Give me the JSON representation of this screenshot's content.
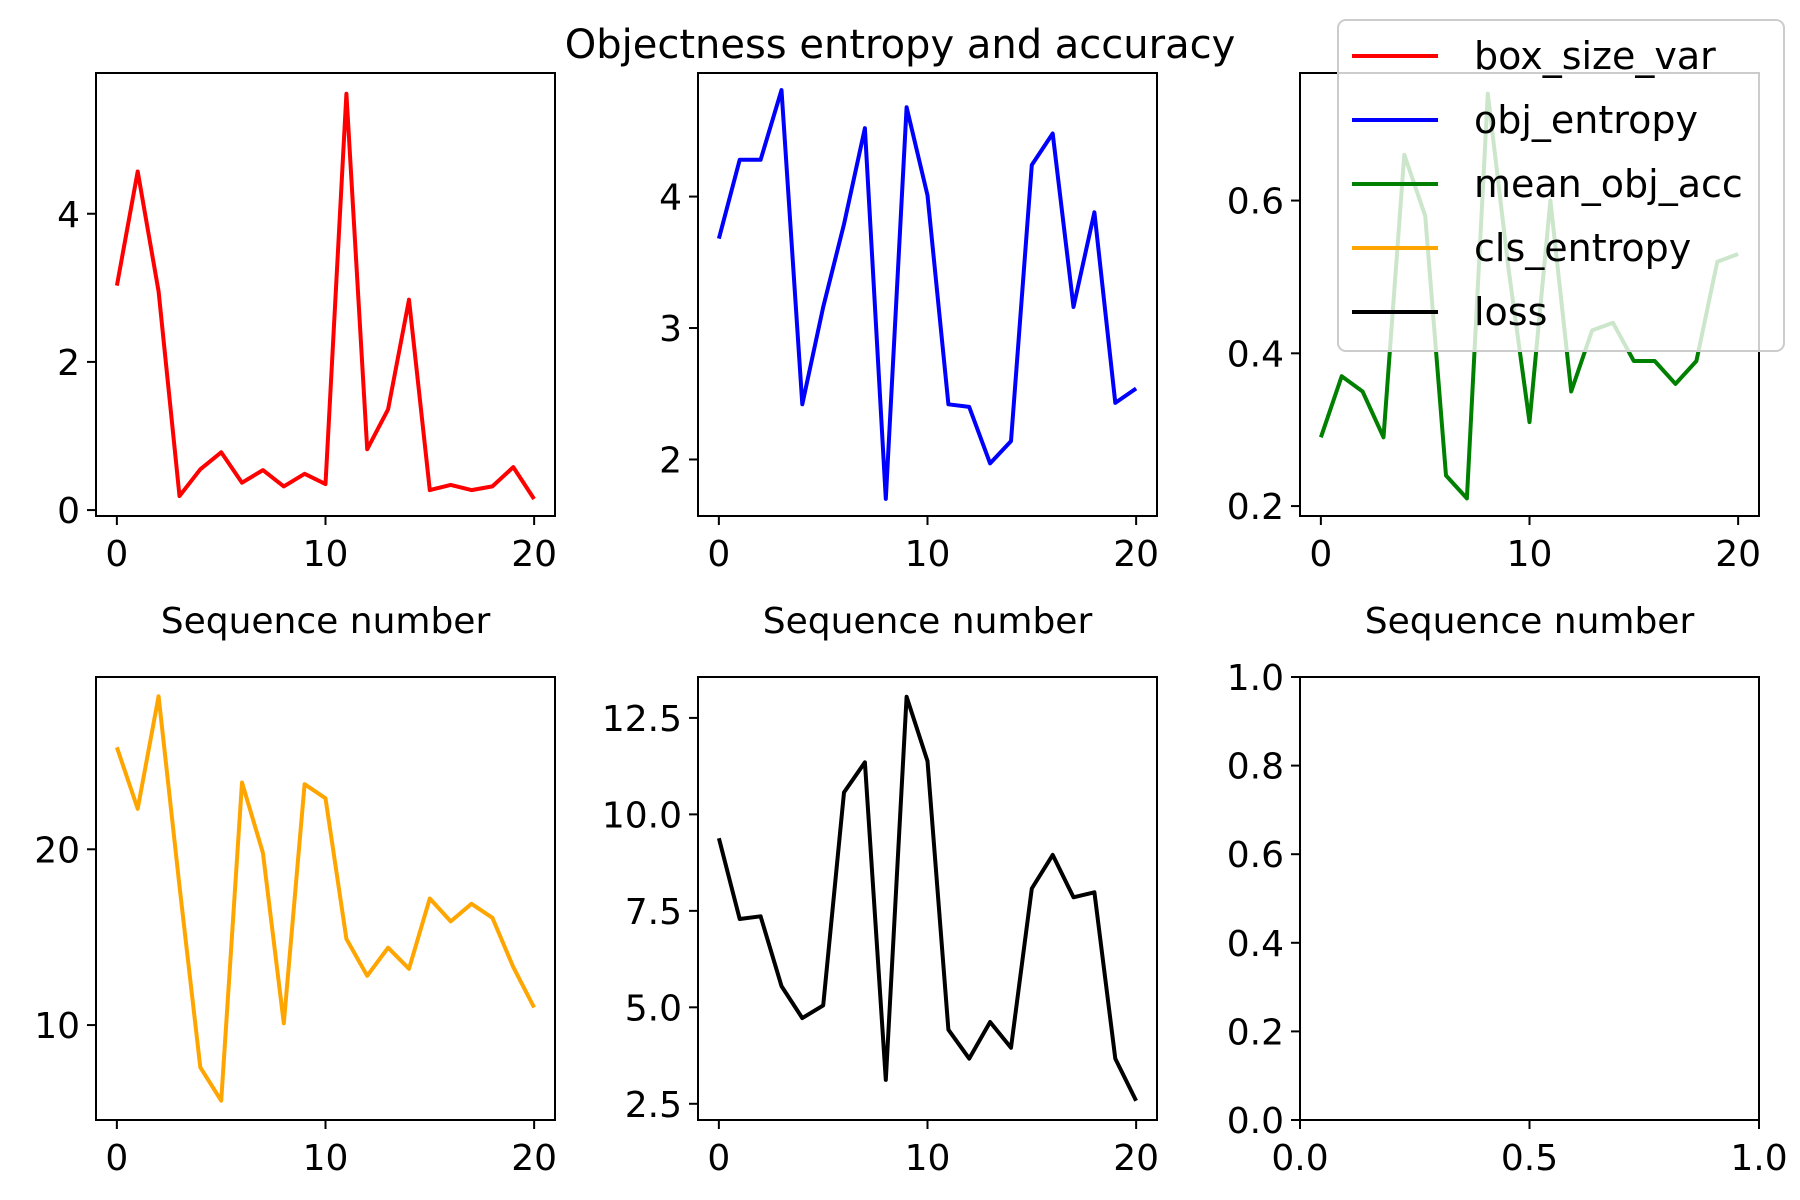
{
  "title": "Objectness entropy and accuracy",
  "legend": {
    "placement": "top-right",
    "entries": [
      {
        "label": "box_size_var",
        "color": "#ff0000"
      },
      {
        "label": "obj_entropy",
        "color": "#0000ff"
      },
      {
        "label": "mean_obj_acc",
        "color": "#008000"
      },
      {
        "label": "cls_entropy",
        "color": "#ffa500"
      },
      {
        "label": "loss",
        "color": "#000000"
      }
    ]
  },
  "chart_data": [
    {
      "type": "line",
      "series": [
        {
          "name": "box_size_var",
          "color": "#ff0000",
          "x": [
            0,
            1,
            2,
            3,
            4,
            5,
            6,
            7,
            8,
            9,
            10,
            11,
            12,
            13,
            14,
            15,
            16,
            17,
            18,
            19,
            20
          ],
          "values": [
            3.03,
            4.57,
            2.95,
            0.19,
            0.55,
            0.78,
            0.37,
            0.54,
            0.32,
            0.49,
            0.35,
            5.62,
            0.82,
            1.36,
            2.84,
            0.27,
            0.34,
            0.27,
            0.32,
            0.58,
            0.15
          ]
        }
      ],
      "xlabel": "Sequence number",
      "ylabel": "",
      "xlim": [
        -1,
        21
      ],
      "ylim": [
        -0.08,
        5.9
      ],
      "xticks": [
        0,
        10,
        20
      ],
      "yticks": [
        0,
        2,
        4
      ],
      "xticklabels": [
        "0",
        "10",
        "20"
      ],
      "yticklabels": [
        "0",
        "2",
        "4"
      ],
      "grid": false
    },
    {
      "type": "line",
      "series": [
        {
          "name": "obj_entropy",
          "color": "#0000ff",
          "x": [
            0,
            1,
            2,
            3,
            4,
            5,
            6,
            7,
            8,
            9,
            10,
            11,
            12,
            13,
            14,
            15,
            16,
            17,
            18,
            19,
            20
          ],
          "values": [
            3.68,
            4.28,
            4.28,
            4.81,
            2.42,
            3.16,
            3.79,
            4.52,
            1.7,
            4.68,
            4.01,
            2.42,
            2.4,
            1.97,
            2.14,
            4.24,
            4.48,
            3.16,
            3.88,
            2.43,
            2.54
          ]
        }
      ],
      "xlabel": "Sequence number",
      "ylabel": "",
      "xlim": [
        -1,
        21
      ],
      "ylim": [
        1.57,
        4.94
      ],
      "xticks": [
        0,
        10,
        20
      ],
      "yticks": [
        2,
        3,
        4
      ],
      "xticklabels": [
        "0",
        "10",
        "20"
      ],
      "yticklabels": [
        "2",
        "3",
        "4"
      ],
      "grid": false
    },
    {
      "type": "line",
      "series": [
        {
          "name": "mean_obj_acc",
          "color": "#008000",
          "x": [
            0,
            1,
            2,
            3,
            4,
            5,
            6,
            7,
            8,
            9,
            10,
            11,
            12,
            13,
            14,
            15,
            16,
            17,
            18,
            19,
            20
          ],
          "values": [
            0.29,
            0.37,
            0.35,
            0.29,
            0.66,
            0.58,
            0.24,
            0.21,
            0.74,
            0.51,
            0.31,
            0.6,
            0.35,
            0.43,
            0.44,
            0.39,
            0.39,
            0.36,
            0.39,
            0.52,
            0.53
          ]
        }
      ],
      "xlabel": "Sequence number",
      "ylabel": "",
      "xlim": [
        -1,
        21
      ],
      "ylim": [
        0.187,
        0.767
      ],
      "xticks": [
        0,
        10,
        20
      ],
      "yticks": [
        0.2,
        0.4,
        0.6
      ],
      "xticklabels": [
        "0",
        "10",
        "20"
      ],
      "yticklabels": [
        "0.2",
        "0.4",
        "0.6"
      ],
      "grid": false
    },
    {
      "type": "line",
      "series": [
        {
          "name": "cls_entropy",
          "color": "#ffa500",
          "x": [
            0,
            1,
            2,
            3,
            4,
            5,
            6,
            7,
            8,
            9,
            10,
            11,
            12,
            13,
            14,
            15,
            16,
            17,
            18,
            19,
            20
          ],
          "values": [
            25.8,
            22.3,
            28.7,
            17.9,
            7.6,
            5.7,
            23.8,
            19.8,
            10.1,
            23.7,
            22.9,
            14.9,
            12.8,
            14.4,
            13.2,
            17.2,
            15.9,
            16.9,
            16.1,
            13.3,
            11.0
          ]
        }
      ],
      "xlabel": "",
      "ylabel": "",
      "xlim": [
        -1,
        21
      ],
      "ylim": [
        4.6,
        29.8
      ],
      "xticks": [
        0,
        10,
        20
      ],
      "yticks": [
        10,
        20
      ],
      "xticklabels": [
        "0",
        "10",
        "20"
      ],
      "yticklabels": [
        "10",
        "20"
      ],
      "grid": false
    },
    {
      "type": "line",
      "series": [
        {
          "name": "loss",
          "color": "#000000",
          "x": [
            0,
            1,
            2,
            3,
            4,
            5,
            6,
            7,
            8,
            9,
            10,
            11,
            12,
            13,
            14,
            15,
            16,
            17,
            18,
            19,
            20
          ],
          "values": [
            9.38,
            7.29,
            7.36,
            5.55,
            4.72,
            5.05,
            10.57,
            11.35,
            3.12,
            13.05,
            11.38,
            4.42,
            3.67,
            4.62,
            3.95,
            8.08,
            8.95,
            7.85,
            7.98,
            3.67,
            2.58
          ]
        }
      ],
      "xlabel": "",
      "ylabel": "",
      "xlim": [
        -1,
        21
      ],
      "ylim": [
        2.08,
        13.56
      ],
      "xticks": [
        0,
        10,
        20
      ],
      "yticks": [
        2.5,
        5.0,
        7.5,
        10.0,
        12.5
      ],
      "xticklabels": [
        "0",
        "10",
        "20"
      ],
      "yticklabels": [
        "2.5",
        "5.0",
        "7.5",
        "10.0",
        "12.5"
      ],
      "grid": false
    },
    {
      "type": "line",
      "series": [],
      "xlabel": "",
      "ylabel": "",
      "xlim": [
        0,
        1
      ],
      "ylim": [
        0,
        1
      ],
      "xticks": [
        0,
        0.5,
        1
      ],
      "yticks": [
        0,
        0.2,
        0.4,
        0.6,
        0.8,
        1.0
      ],
      "xticklabels": [
        "0.0",
        "0.5",
        "1.0"
      ],
      "yticklabels": [
        "0.0",
        "0.2",
        "0.4",
        "0.6",
        "0.8",
        "1.0"
      ],
      "grid": false
    }
  ]
}
